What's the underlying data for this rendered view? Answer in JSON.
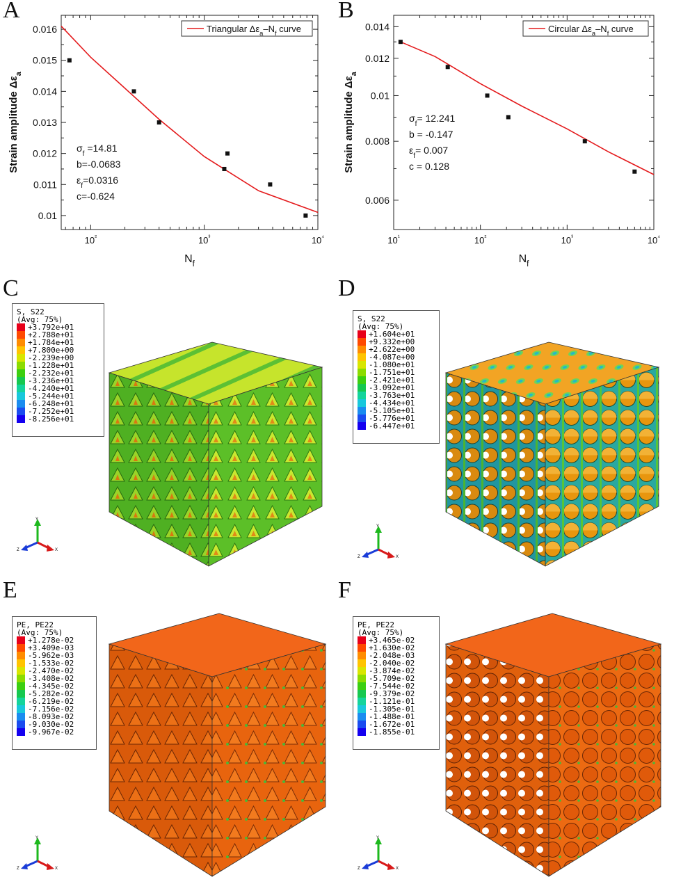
{
  "chart_data": [
    {
      "panel": "A",
      "type": "scatter",
      "xscale": "log",
      "xlim": [
        55,
        10000
      ],
      "ylim": [
        0.00955,
        0.01645
      ],
      "xticks": [
        100,
        1000,
        10000
      ],
      "xtick_labels": [
        "10²",
        "10³",
        "10⁴"
      ],
      "yticks": [
        0.01,
        0.011,
        0.012,
        0.013,
        0.014,
        0.015,
        0.016
      ],
      "ytick_labels": [
        "0.01",
        "0.011",
        "0.012",
        "0.013",
        "0.014",
        "0.015",
        "0.016"
      ],
      "xlabel": "Nᶠ",
      "xlabel_main": "N",
      "xlabel_sub": "f",
      "ylabel": "Strain amplitude Δεa",
      "ylabel_main": "Strain amplitude Δε",
      "ylabel_sub": "a",
      "legend": "Triangular Δεa–Nf curve",
      "legend_parts": [
        "Triangular Δε",
        "a",
        "–N",
        "f",
        " curve"
      ],
      "points": [
        [
          65,
          0.015
        ],
        [
          240,
          0.014
        ],
        [
          400,
          0.013
        ],
        [
          1500,
          0.0115
        ],
        [
          1600,
          0.012
        ],
        [
          3800,
          0.011
        ],
        [
          7800,
          0.01
        ]
      ],
      "curve": [
        [
          55,
          0.0161
        ],
        [
          100,
          0.0151
        ],
        [
          200,
          0.0141
        ],
        [
          400,
          0.0131
        ],
        [
          1000,
          0.0119
        ],
        [
          3000,
          0.0108
        ],
        [
          10000,
          0.0101
        ]
      ],
      "params": [
        {
          "sym": "σ",
          "sub": "f",
          "rest": " =14.81"
        },
        {
          "sym": "b",
          "sub": "",
          "rest": "=-0.0683"
        },
        {
          "sym": "ε",
          "sub": "f",
          "rest": "=0.0316"
        },
        {
          "sym": "c",
          "sub": "",
          "rest": "=-0.624"
        }
      ]
    },
    {
      "panel": "B",
      "type": "scatter",
      "xscale": "log",
      "yscale": "log",
      "xlim": [
        10,
        10000
      ],
      "ylim": [
        0.0052,
        0.0148
      ],
      "xticks": [
        10,
        100,
        1000,
        10000
      ],
      "xtick_labels": [
        "10¹",
        "10²",
        "10³",
        "10⁴"
      ],
      "yticks": [
        0.006,
        0.008,
        0.01,
        0.012,
        0.014
      ],
      "ytick_labels": [
        "0.006",
        "0.008",
        "0.01",
        "0.012",
        "0.014"
      ],
      "xlabel": "Nᶠ",
      "xlabel_main": "N",
      "xlabel_sub": "f",
      "ylabel": "Strain amplitude Δεa",
      "ylabel_main": "Strain amplitude Δε",
      "ylabel_sub": "a",
      "legend": "Circular Δεa–Nf curve",
      "legend_parts": [
        "Circular Δε",
        "a",
        "–N",
        "f",
        " curve"
      ],
      "points": [
        [
          12,
          0.013
        ],
        [
          42,
          0.0115
        ],
        [
          120,
          0.01
        ],
        [
          210,
          0.009
        ],
        [
          1600,
          0.008
        ],
        [
          6000,
          0.0069
        ]
      ],
      "curve": [
        [
          12,
          0.013
        ],
        [
          30,
          0.0121
        ],
        [
          100,
          0.0106
        ],
        [
          300,
          0.0095
        ],
        [
          1000,
          0.0085
        ],
        [
          3000,
          0.0076
        ],
        [
          10000,
          0.0068
        ]
      ],
      "params": [
        {
          "sym": "σ",
          "sub": "f",
          "rest": "= 12.241"
        },
        {
          "sym": "b",
          "sub": "",
          "rest": " = -0.147"
        },
        {
          "sym": "ε",
          "sub": "f",
          "rest": "= 0.007"
        },
        {
          "sym": "c",
          "sub": "",
          "rest": " = 0.128"
        }
      ]
    }
  ],
  "panels": {
    "A": "A",
    "B": "B",
    "C": "C",
    "D": "D",
    "E": "E",
    "F": "F"
  },
  "contour_legends": {
    "C": {
      "title1": "S, S22",
      "title2": "(Avg: 75%)",
      "values": [
        "+3.792e+01",
        "+2.788e+01",
        "+1.784e+01",
        "+7.800e+00",
        "-2.239e+00",
        "-1.228e+01",
        "-2.232e+01",
        "-3.236e+01",
        "-4.240e+01",
        "-5.244e+01",
        "-6.248e+01",
        "-7.252e+01",
        "-8.256e+01"
      ]
    },
    "D": {
      "title1": "S, S22",
      "title2": "(Avg: 75%)",
      "values": [
        "+1.604e+01",
        "+9.332e+00",
        "+2.622e+00",
        "-4.087e+00",
        "-1.080e+01",
        "-1.751e+01",
        "-2.421e+01",
        "-3.092e+01",
        "-3.763e+01",
        "-4.434e+01",
        "-5.105e+01",
        "-5.776e+01",
        "-6.447e+01"
      ]
    },
    "E": {
      "title1": "PE, PE22",
      "title2": "(Avg: 75%)",
      "values": [
        "+1.278e-02",
        "+3.409e-03",
        "-5.962e-03",
        "-1.533e-02",
        "-2.470e-02",
        "-3.408e-02",
        "-4.345e-02",
        "-5.282e-02",
        "-6.219e-02",
        "-7.156e-02",
        "-8.093e-02",
        "-9.030e-02",
        "-9.967e-02"
      ]
    },
    "F": {
      "title1": "PE, PE22",
      "title2": "(Avg: 75%)",
      "values": [
        "+3.465e-02",
        "+1.630e-02",
        "-2.048e-03",
        "-2.040e-02",
        "-3.874e-02",
        "-5.709e-02",
        "-7.544e-02",
        "-9.379e-02",
        "-1.121e-01",
        "-1.305e-01",
        "-1.488e-01",
        "-1.672e-01",
        "-1.855e-01"
      ]
    }
  },
  "contour_colors": [
    "#e8001a",
    "#ff4a00",
    "#ff8c00",
    "#ffc400",
    "#d8e600",
    "#8cdc00",
    "#3ccf10",
    "#16c850",
    "#14d49c",
    "#18c8dc",
    "#1a8cf0",
    "#1a4cf0",
    "#1400f0"
  ],
  "colors": {
    "curve": "#e41a1c",
    "marker": "#111111",
    "green_face": "#62c52a",
    "green_top": "#b8e02c",
    "orange_face": "#e8780a",
    "orange_top": "#f0a824",
    "pe_face": "#f0620e",
    "pe_top": "#f2661a"
  },
  "triad_labels": {
    "y": "Y",
    "z": "Z",
    "x": "X"
  }
}
